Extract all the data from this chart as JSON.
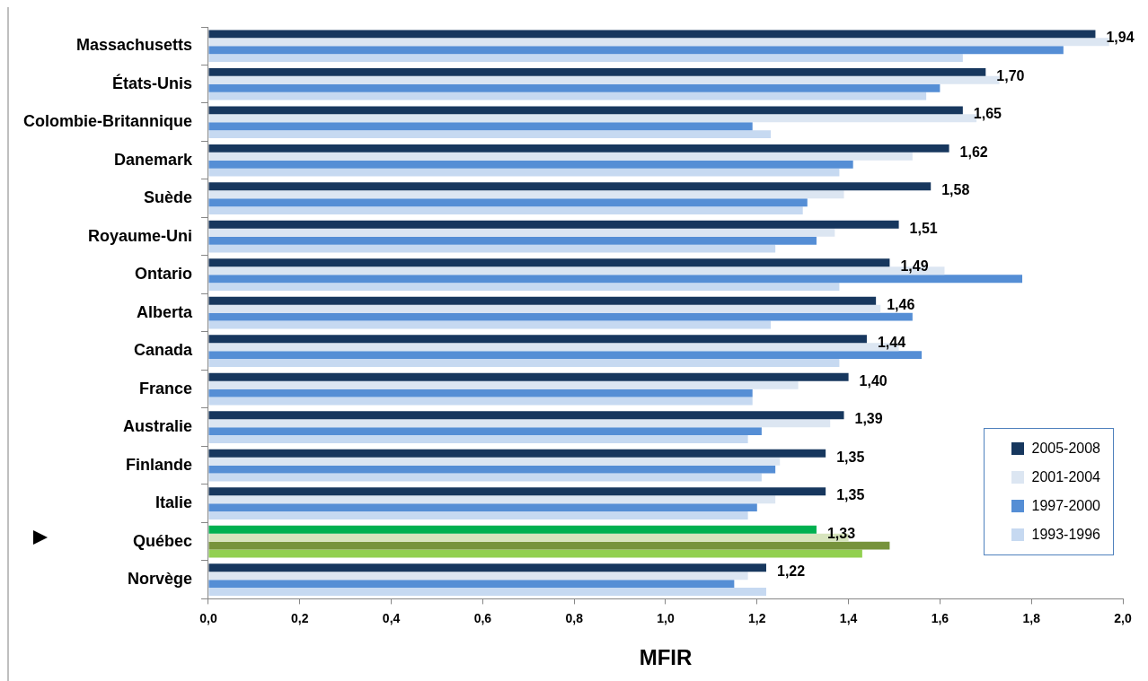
{
  "chart_data": {
    "type": "bar",
    "orientation": "horizontal",
    "xlabel": "MFIR",
    "categories": [
      "Massachusetts",
      "États-Unis",
      "Colombie-Britannique",
      "Danemark",
      "Suède",
      "Royaume-Uni",
      "Ontario",
      "Alberta",
      "Canada",
      "France",
      "Australie",
      "Finlande",
      "Italie",
      "Québec",
      "Norvège"
    ],
    "series": [
      {
        "name": "2005-2008",
        "color": "#17375e",
        "colors": [
          "#17375e",
          "#17375e",
          "#17375e",
          "#17375e",
          "#17375e",
          "#17375e",
          "#17375e",
          "#17375e",
          "#17375e",
          "#17375e",
          "#17375e",
          "#17375e",
          "#17375e",
          "#00b050",
          "#17375e"
        ],
        "values": [
          1.94,
          1.7,
          1.65,
          1.62,
          1.58,
          1.51,
          1.49,
          1.46,
          1.44,
          1.4,
          1.39,
          1.35,
          1.35,
          1.33,
          1.22
        ],
        "value_labels": [
          "1,94",
          "1,70",
          "1,65",
          "1,62",
          "1,58",
          "1,51",
          "1,49",
          "1,46",
          "1,44",
          "1,40",
          "1,39",
          "1,35",
          "1,35",
          "1,33",
          "1,22"
        ]
      },
      {
        "name": "2001-2004",
        "color": "#dce6f2",
        "colors": [
          "#dce6f2",
          "#dce6f2",
          "#dce6f2",
          "#dce6f2",
          "#dce6f2",
          "#dce6f2",
          "#dce6f2",
          "#dce6f2",
          "#dce6f2",
          "#dce6f2",
          "#dce6f2",
          "#dce6f2",
          "#dce6f2",
          "#d7e4bd",
          "#dce6f2"
        ],
        "values": [
          1.97,
          1.73,
          1.68,
          1.54,
          1.39,
          1.37,
          1.61,
          1.47,
          1.51,
          1.29,
          1.36,
          1.25,
          1.24,
          1.4,
          1.18
        ]
      },
      {
        "name": "1997-2000",
        "color": "#558ed5",
        "colors": [
          "#558ed5",
          "#558ed5",
          "#558ed5",
          "#558ed5",
          "#558ed5",
          "#558ed5",
          "#558ed5",
          "#558ed5",
          "#558ed5",
          "#558ed5",
          "#558ed5",
          "#558ed5",
          "#558ed5",
          "#77933c",
          "#558ed5"
        ],
        "values": [
          1.87,
          1.6,
          1.19,
          1.41,
          1.31,
          1.33,
          1.78,
          1.54,
          1.56,
          1.19,
          1.21,
          1.24,
          1.2,
          1.49,
          1.15
        ]
      },
      {
        "name": "1993-1996",
        "color": "#c6d9f1",
        "colors": [
          "#c6d9f1",
          "#c6d9f1",
          "#c6d9f1",
          "#c6d9f1",
          "#c6d9f1",
          "#c6d9f1",
          "#c6d9f1",
          "#c6d9f1",
          "#c6d9f1",
          "#c6d9f1",
          "#c6d9f1",
          "#c6d9f1",
          "#c6d9f1",
          "#92d050",
          "#c6d9f1"
        ],
        "values": [
          1.65,
          1.57,
          1.23,
          1.38,
          1.3,
          1.24,
          1.38,
          1.23,
          1.38,
          1.19,
          1.18,
          1.21,
          1.18,
          1.43,
          1.22
        ]
      }
    ],
    "xlim": [
      0,
      2
    ],
    "xticks": [
      {
        "value": 0,
        "label": "0,0"
      },
      {
        "value": 0.2,
        "label": "0,2"
      },
      {
        "value": 0.4,
        "label": "0,4"
      },
      {
        "value": 0.6,
        "label": "0,6"
      },
      {
        "value": 0.8,
        "label": "0,8"
      },
      {
        "value": 1,
        "label": "1,0"
      },
      {
        "value": 1.2,
        "label": "1,2"
      },
      {
        "value": 1.4,
        "label": "1,4"
      },
      {
        "value": 1.6,
        "label": "1,6"
      },
      {
        "value": 1.8,
        "label": "1,8"
      },
      {
        "value": 2,
        "label": "2,0"
      }
    ],
    "grid": false,
    "legend": "bottom right"
  }
}
